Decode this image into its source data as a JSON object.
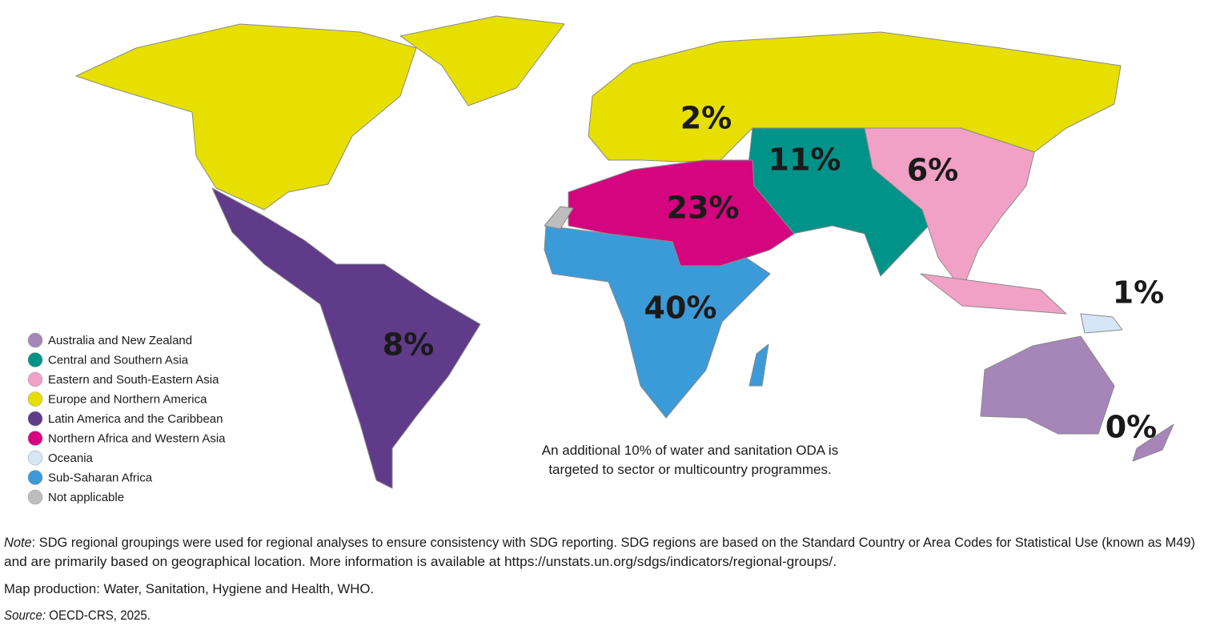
{
  "legend": {
    "items": [
      {
        "label": "Australia and New Zealand",
        "color": "#a685b9",
        "share": "0%"
      },
      {
        "label": "Central and Southern Asia",
        "color": "#00938a",
        "share": "11%"
      },
      {
        "label": "Eastern and South-Eastern Asia",
        "color": "#f1a1c6",
        "share": "6%"
      },
      {
        "label": "Europe and Northern America",
        "color": "#e6df00",
        "share": "2%"
      },
      {
        "label": "Latin America and the Caribbean",
        "color": "#5f3b89",
        "share": "8%"
      },
      {
        "label": "Northern Africa and Western Asia",
        "color": "#d5047f",
        "share": "23%"
      },
      {
        "label": "Oceania",
        "color": "#d7e6f6",
        "share": "1%"
      },
      {
        "label": "Sub-Saharan Africa",
        "color": "#3b9bd8",
        "share": "40%"
      },
      {
        "label": "Not applicable",
        "color": "#bdbdbd"
      }
    ]
  },
  "annotation": {
    "lines": [
      "An additional 10% of water and sanitation ODA is",
      "targeted to sector or multicountry programmes."
    ]
  },
  "note": {
    "label": "Note",
    "lines": [
      ": SDG regional groupings were used for regional analyses to ensure consistency with SDG reporting. SDG regions are based on the Standard Country or Area Codes for Statistical Use (known as M49)",
      "and are primarily based on geographical location. More information is available at https://unstats.un.org/sdgs/indicators/regional-groups/."
    ]
  },
  "production": "Map production: Water, Sanitation, Hygiene and Health, WHO.",
  "source": {
    "label": "Source:",
    "text": " OECD-CRS, 2025."
  }
}
